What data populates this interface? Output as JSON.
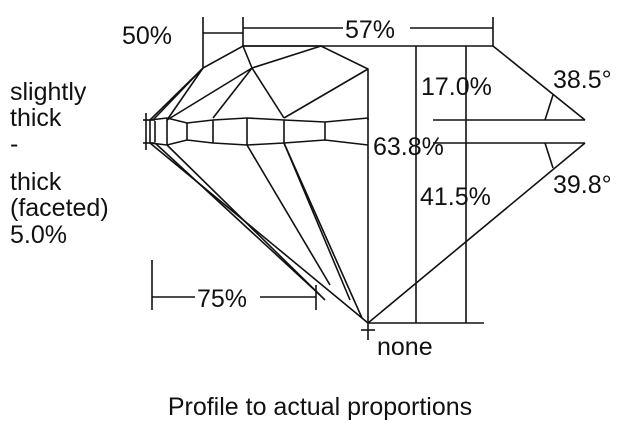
{
  "labels": {
    "crown_half_width": "50%",
    "table": "57%",
    "crown_height": "17.0%",
    "crown_angle": "38.5°",
    "total_depth": "63.8%",
    "pavilion_depth": "41.5%",
    "pavilion_angle": "39.8°",
    "lower_half": "75%",
    "culet": "none",
    "girdle_lines": [
      "slightly",
      "thick",
      "-",
      "thick",
      "(faceted)",
      "5.0%"
    ]
  },
  "caption": "Profile to actual proportions"
}
